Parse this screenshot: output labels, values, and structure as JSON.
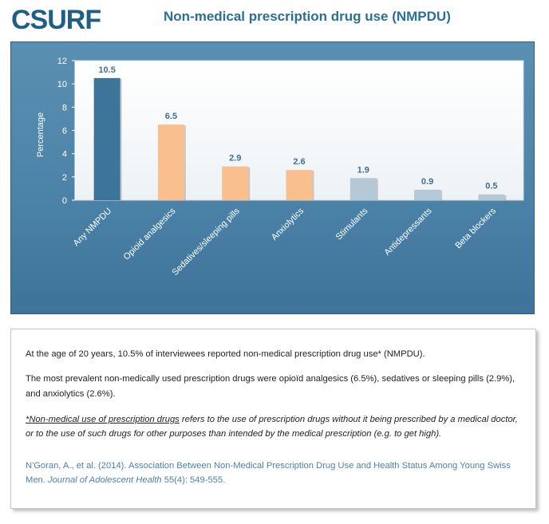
{
  "header": {
    "logo_text": "CSURF",
    "title": "Non-medical prescription drug use (NMPDU)"
  },
  "chart_data": {
    "type": "bar",
    "title": "",
    "ylabel": "Percentage",
    "xlabel": "",
    "ylim": [
      0,
      12
    ],
    "yticks": [
      0,
      2,
      4,
      6,
      8,
      10,
      12
    ],
    "categories": [
      "Any NMPDU",
      "Opioid analgesics",
      "Sedatives/sleeping pills",
      "Anxiolytics",
      "Stimulants",
      "Antidepressants",
      "Beta blockers"
    ],
    "values": [
      10.5,
      6.5,
      2.9,
      2.6,
      1.9,
      0.9,
      0.5
    ],
    "data_labels": [
      "10.5",
      "6.5",
      "2.9",
      "2.6",
      "1.9",
      "0.9",
      "0.5"
    ],
    "colors": [
      "#3d7499",
      "#f9bf8f",
      "#f9bf8f",
      "#f9bf8f",
      "#b4c8d6",
      "#b4c8d6",
      "#b4c8d6"
    ],
    "grid": false,
    "legend": "none"
  },
  "text": {
    "p1": "At the age of 20 years, 10.5% of interviewees reported non-medical prescription drug use* (NMPDU).",
    "p2": "The most prevalent non-medically used prescription drugs were opioïd analgesics (6.5%), sedatives or sleeping pills (2.9%), and anxiolytics (2.6%).",
    "p3_underlined": "*Non-medical use of prescription drugs",
    "p3_rest": " refers to the use of prescription drugs without it being prescribed by a medical doctor, or to the use of such drugs for other purposes than intended by the medical prescription (e.g. to get high).",
    "citation_authors": "N'Goran, A., et al. (2014). Association Between Non-Medical Prescription Drug Use and Health Status Among Young Swiss Men. ",
    "citation_journal": "Journal of Adolescent Health",
    "citation_tail": " 55(4): 549-555."
  }
}
